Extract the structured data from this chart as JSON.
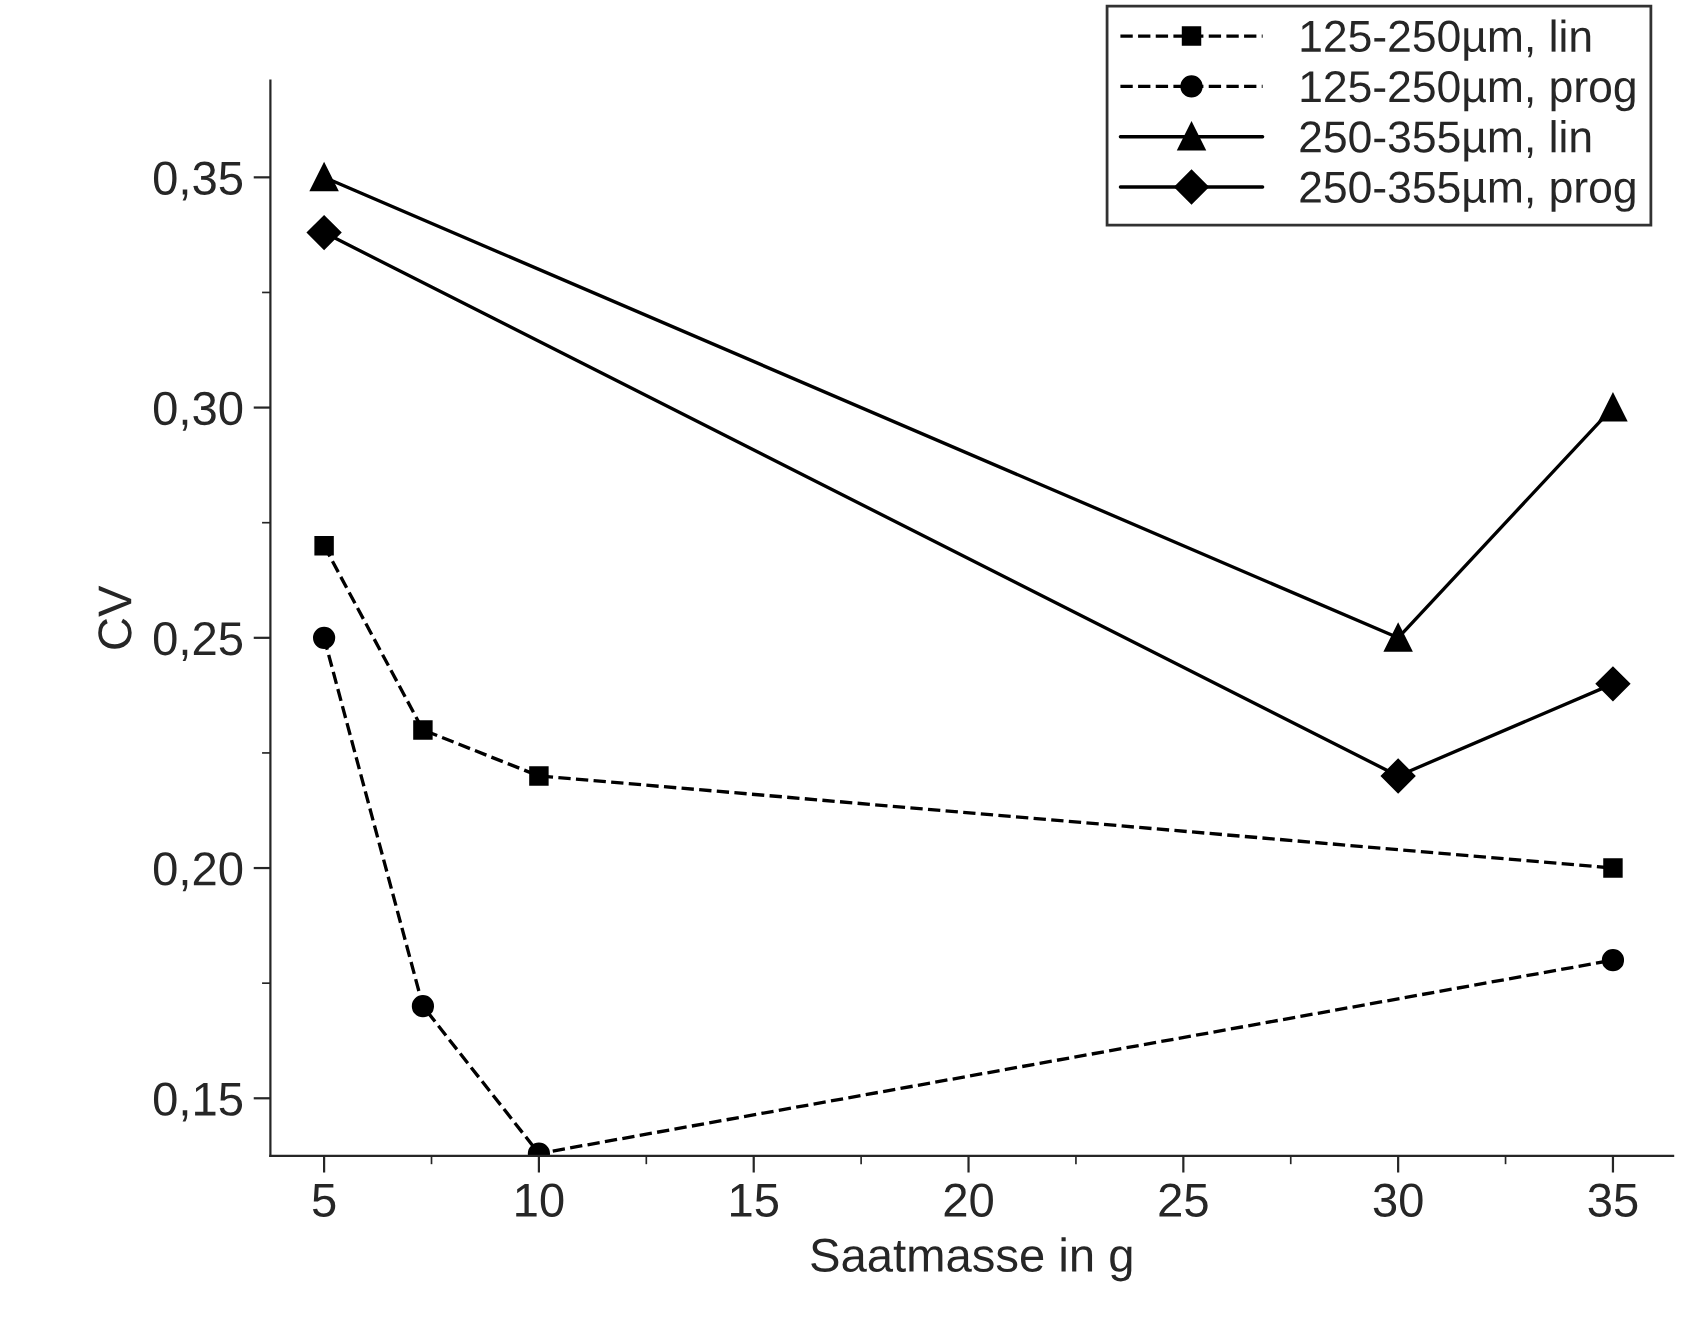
{
  "chart_data": {
    "type": "line",
    "xlabel": "Saatmasse in g",
    "ylabel": "CV",
    "xlim": [
      3.75,
      36.4
    ],
    "xticks": [
      5,
      10,
      15,
      20,
      25,
      30,
      35
    ],
    "ylim": [
      0.1375,
      0.371
    ],
    "yticks": [
      {
        "value": 0.15,
        "label": "0,15"
      },
      {
        "value": 0.2,
        "label": "0,20"
      },
      {
        "value": 0.25,
        "label": "0,25"
      },
      {
        "value": 0.3,
        "label": "0,30"
      },
      {
        "value": 0.35,
        "label": "0,35"
      }
    ],
    "grid": false,
    "legend": "top right",
    "series": [
      {
        "name": "125-250µm, lin",
        "color": "#000000",
        "marker": "square",
        "line_style": "dashed",
        "x": [
          5,
          7.3,
          10,
          35
        ],
        "values": [
          0.27,
          0.23,
          0.22,
          0.2
        ]
      },
      {
        "name": "125-250µm, prog",
        "color": "#000000",
        "marker": "circle",
        "line_style": "dashed",
        "x": [
          5,
          7.3,
          10,
          35
        ],
        "values": [
          0.25,
          0.17,
          0.138,
          0.18
        ]
      },
      {
        "name": "250-355µm, lin",
        "color": "#000000",
        "marker": "triangle",
        "line_style": "solid",
        "x": [
          5,
          30,
          35
        ],
        "values": [
          0.35,
          0.25,
          0.3
        ]
      },
      {
        "name": "250-355µm, prog",
        "color": "#000000",
        "marker": "diamond",
        "line_style": "solid",
        "x": [
          5,
          30,
          35
        ],
        "values": [
          0.338,
          0.22,
          0.24
        ]
      }
    ]
  }
}
